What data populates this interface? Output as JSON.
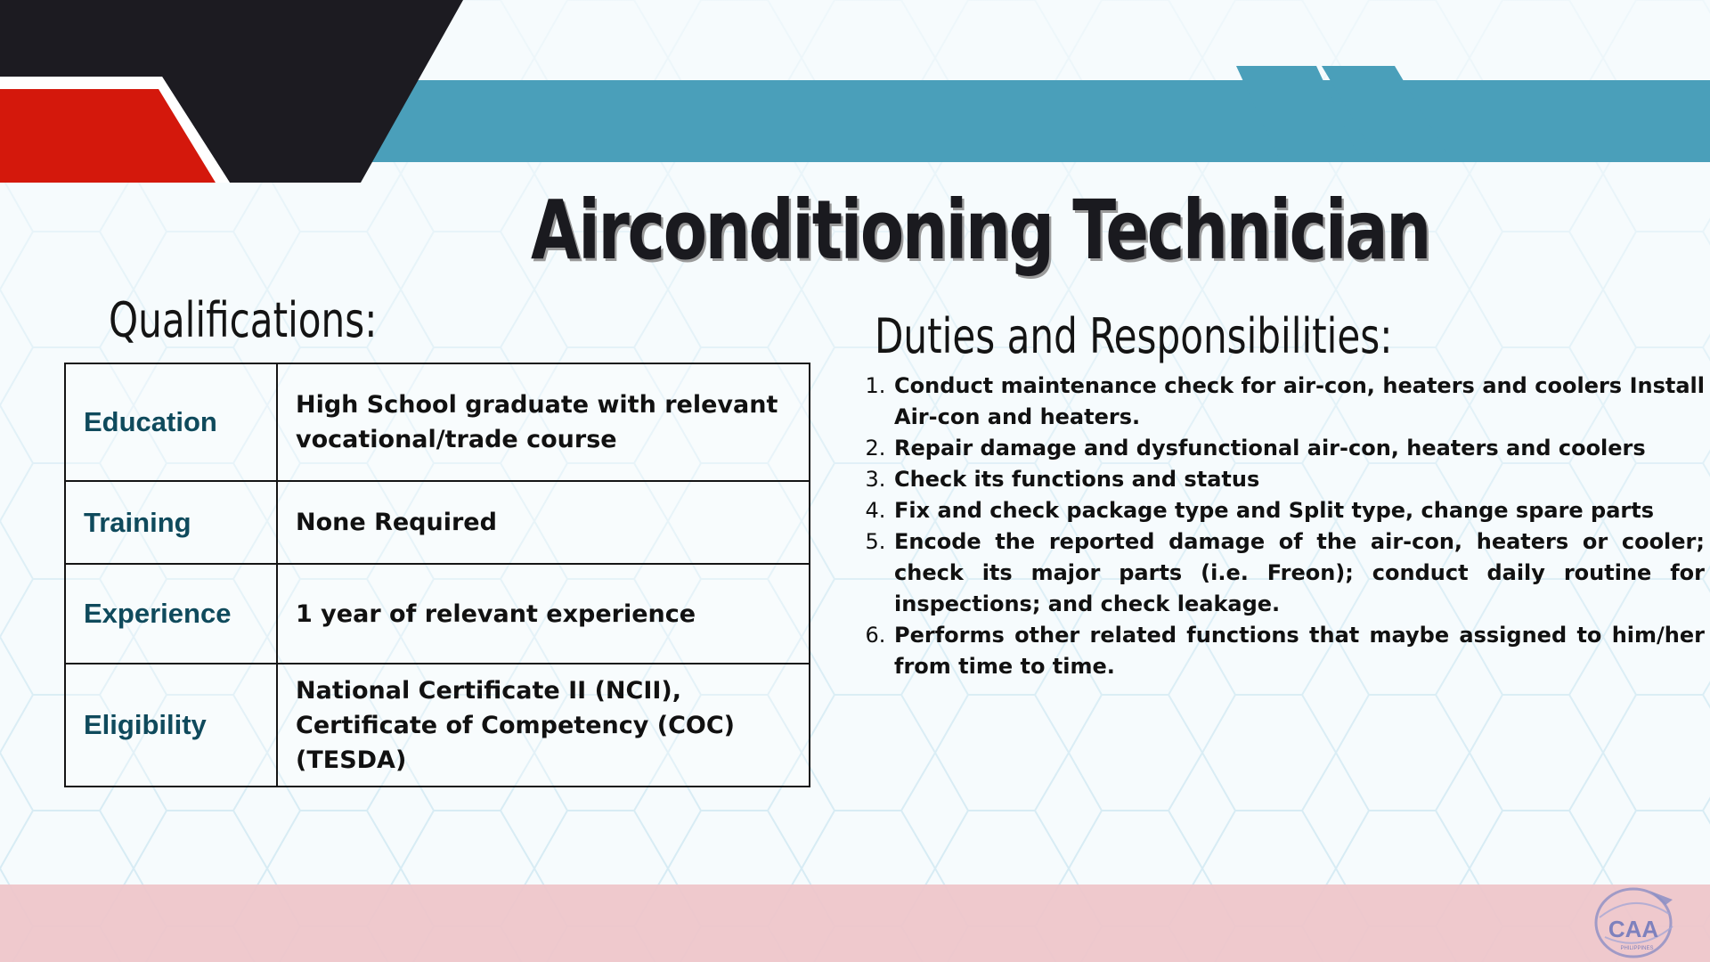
{
  "slide": {
    "title": "Airconditioning Technician",
    "qualifications": {
      "heading": "Qualifications:",
      "rows": [
        {
          "label": "Education",
          "value": "High School graduate with relevant vocational/trade course"
        },
        {
          "label": "Training",
          "value": "None Required"
        },
        {
          "label": "Experience",
          "value": "1 year of relevant experience"
        },
        {
          "label": "Eligibility",
          "value": "National Certificate II (NCII), Certificate of Competency (COC) (TESDA)"
        }
      ]
    },
    "duties": {
      "heading": "Duties and Responsibilities:",
      "items": [
        "Conduct maintenance check for air-con, heaters and coolers Install Air-con and heaters.",
        "Repair damage and dysfunctional air-con, heaters and coolers",
        "Check its functions and status",
        "Fix and check package type and Split type, change spare parts",
        "Encode the reported damage of the air-con, heaters or cooler; check its major parts (i.e. Freon); conduct daily routine for inspections; and check leakage.",
        "Performs other related functions that maybe assigned to him/her from time to time."
      ]
    },
    "logo": {
      "text": "CAA",
      "subtext": "PHILIPPINES"
    }
  },
  "colors": {
    "accent_blue": "#4a9fba",
    "accent_red": "#d4180c",
    "header_dark": "#1c1b21",
    "label_teal": "#0f4a5c",
    "footer_pink": "#eec6ca"
  }
}
